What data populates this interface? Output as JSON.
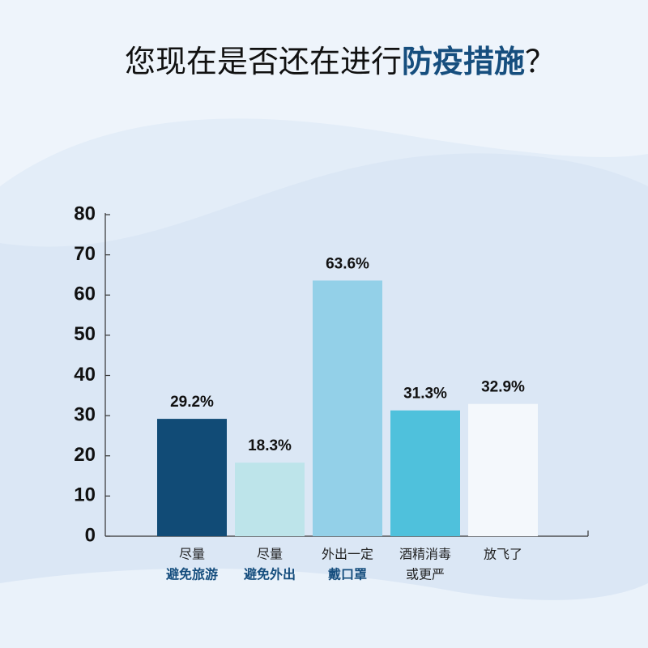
{
  "chart_data": {
    "type": "bar",
    "title": {
      "plain": "您现在是否还在进行",
      "emphasis": "防疫措施",
      "end": "？"
    },
    "categories": [
      [
        "尽量",
        "避免旅游"
      ],
      [
        "尽量",
        "避免外出"
      ],
      [
        "外出一定",
        "戴口罩"
      ],
      [
        "酒精消毒",
        "或更严"
      ],
      [
        "放飞了"
      ]
    ],
    "emphasized_line": [
      1,
      1,
      1,
      null,
      null
    ],
    "values": [
      29.2,
      18.3,
      63.6,
      31.3,
      32.9
    ],
    "value_labels": [
      "29.2%",
      "18.3%",
      "63.6%",
      "31.3%",
      "32.9%"
    ],
    "colors": [
      "#114b76",
      "#bde4ea",
      "#93d0e8",
      "#4fc1dc",
      "#f4f8fc"
    ],
    "ylim": [
      0,
      80
    ],
    "yticks": [
      0,
      10,
      20,
      30,
      40,
      50,
      60,
      70,
      80
    ]
  }
}
